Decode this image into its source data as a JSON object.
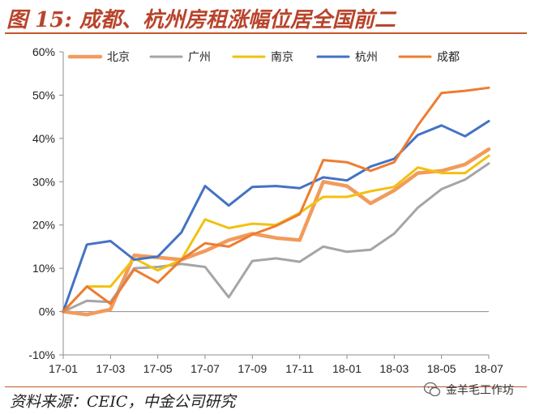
{
  "title": "图 15: 成都、杭州房租涨幅位居全国前二",
  "source": "资料来源：CEIC，中金公司研究",
  "watermark": {
    "text": "金羊毛工作坊",
    "icon": "wechat-icon"
  },
  "chart_data": {
    "type": "line",
    "x": [
      "17-01",
      "17-02",
      "17-03",
      "17-04",
      "17-05",
      "17-06",
      "17-07",
      "17-08",
      "17-09",
      "17-10",
      "17-11",
      "17-12",
      "18-01",
      "18-02",
      "18-03",
      "18-04",
      "18-05",
      "18-06",
      "18-07"
    ],
    "x_tick_labels": [
      "17-01",
      "17-03",
      "17-05",
      "17-07",
      "17-09",
      "17-11",
      "18-01",
      "18-03",
      "18-05",
      "18-07"
    ],
    "y_tick_labels": [
      "60%",
      "50%",
      "40%",
      "30%",
      "20%",
      "10%",
      "0%",
      "-10%"
    ],
    "ylim": [
      -0.1,
      0.6
    ],
    "grid": false,
    "legend_position": "top",
    "series": [
      {
        "name": "北京",
        "color": "#F29B5C",
        "values": [
          0,
          -0.007,
          0.005,
          0.13,
          0.125,
          0.12,
          0.14,
          0.165,
          0.18,
          0.17,
          0.165,
          0.3,
          0.29,
          0.25,
          0.28,
          0.32,
          0.325,
          0.34,
          0.375
        ]
      },
      {
        "name": "广州",
        "color": "#A5A5A5",
        "values": [
          0,
          0.025,
          0.022,
          0.1,
          0.103,
          0.11,
          0.103,
          0.033,
          0.117,
          0.123,
          0.115,
          0.15,
          0.138,
          0.143,
          0.18,
          0.24,
          0.283,
          0.305,
          0.342
        ]
      },
      {
        "name": "南京",
        "color": "#F2C10F",
        "values": [
          0,
          0.058,
          0.058,
          0.123,
          0.095,
          0.12,
          0.213,
          0.193,
          0.203,
          0.2,
          0.228,
          0.265,
          0.265,
          0.278,
          0.288,
          0.333,
          0.32,
          0.32,
          0.36
        ]
      },
      {
        "name": "杭州",
        "color": "#4472C4",
        "values": [
          0,
          0.155,
          0.163,
          0.12,
          0.127,
          0.183,
          0.29,
          0.245,
          0.288,
          0.29,
          0.285,
          0.31,
          0.303,
          0.335,
          0.353,
          0.408,
          0.43,
          0.405,
          0.44
        ]
      },
      {
        "name": "成都",
        "color": "#ED7D31",
        "values": [
          0,
          0.058,
          0.018,
          0.097,
          0.067,
          0.12,
          0.158,
          0.15,
          0.178,
          0.198,
          0.225,
          0.35,
          0.345,
          0.325,
          0.345,
          0.43,
          0.505,
          0.51,
          0.517
        ]
      }
    ]
  }
}
